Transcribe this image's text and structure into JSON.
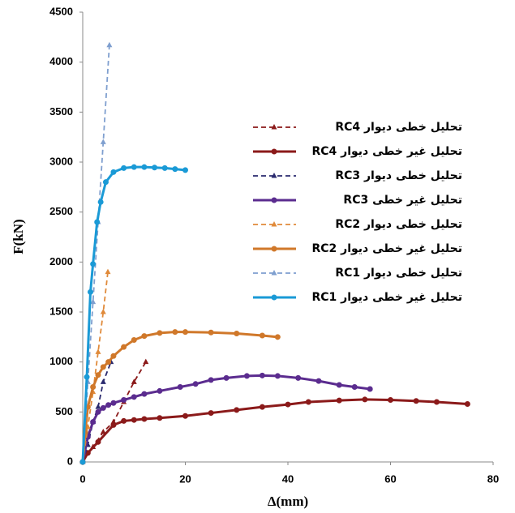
{
  "chart_data": {
    "type": "line",
    "x_label": "Δ(mm)",
    "y_label": "F(kN)",
    "xlim": [
      0,
      80
    ],
    "xticks": [
      0,
      20,
      40,
      60,
      80
    ],
    "ylim": [
      0,
      4500
    ],
    "yticks": [
      0,
      500,
      1000,
      1500,
      2000,
      2500,
      3000,
      3500,
      4000,
      4500
    ],
    "series": [
      {
        "name": "تحلیل خطی دیوار RC4",
        "color": "#8b1a1a",
        "dashed": true,
        "marker": "triangle",
        "x": [
          0,
          2,
          4,
          6,
          8,
          10,
          12.3
        ],
        "values": [
          0,
          150,
          300,
          400,
          600,
          800,
          1000
        ]
      },
      {
        "name": "تحلیل غیر خطی دیوار RC4",
        "color": "#8b1a1a",
        "dashed": false,
        "marker": "circle",
        "x": [
          0,
          1,
          3,
          6,
          8,
          10,
          12,
          15,
          20,
          25,
          30,
          35,
          40,
          44,
          50,
          55,
          60,
          65,
          69,
          75
        ],
        "values": [
          0,
          90,
          200,
          370,
          410,
          420,
          430,
          440,
          460,
          490,
          520,
          550,
          575,
          600,
          615,
          625,
          620,
          610,
          600,
          580
        ]
      },
      {
        "name": "تحلیل خطی دیوار RC3",
        "color": "#2a2a6e",
        "dashed": true,
        "marker": "triangle",
        "x": [
          0,
          1,
          2,
          3,
          4,
          5.5
        ],
        "values": [
          0,
          170,
          400,
          550,
          800,
          1000
        ]
      },
      {
        "name": "تحلیل غیر خطی RC3",
        "color": "#5b2c8f",
        "dashed": false,
        "marker": "circle",
        "x": [
          0,
          1,
          2,
          3,
          4,
          5,
          6,
          8,
          10,
          12,
          15,
          19,
          22,
          25,
          28,
          32,
          35,
          38,
          42,
          46,
          50,
          53,
          56
        ],
        "values": [
          0,
          250,
          400,
          500,
          540,
          570,
          590,
          620,
          650,
          680,
          710,
          750,
          780,
          820,
          840,
          860,
          865,
          860,
          840,
          810,
          770,
          750,
          730
        ]
      },
      {
        "name": "تحلیل خطی دیوار RC2",
        "color": "#e08a3a",
        "dashed": true,
        "marker": "triangle",
        "x": [
          0,
          1,
          2,
          3,
          4,
          4.9
        ],
        "values": [
          0,
          350,
          700,
          1100,
          1500,
          1900
        ]
      },
      {
        "name": "تحلیل غیر خطی دیوار RC2",
        "color": "#d0782a",
        "dashed": false,
        "marker": "circle",
        "x": [
          0,
          0.5,
          1,
          2,
          3,
          4,
          5,
          6,
          8,
          10,
          12,
          15,
          18,
          20,
          25,
          30,
          35,
          38
        ],
        "values": [
          0,
          300,
          550,
          750,
          870,
          950,
          1000,
          1060,
          1150,
          1220,
          1260,
          1290,
          1300,
          1300,
          1295,
          1285,
          1265,
          1250
        ]
      },
      {
        "name": "تحلیل خطی دیوار RC1",
        "color": "#7f9fcf",
        "dashed": true,
        "marker": "triangle",
        "x": [
          0,
          1,
          2,
          3,
          4,
          5.2
        ],
        "values": [
          0,
          800,
          1600,
          2400,
          3200,
          4170
        ]
      },
      {
        "name": "تحلیل غیر خطی دیوار RC1",
        "color": "#1a9ad6",
        "dashed": false,
        "marker": "circle",
        "x": [
          0,
          0.8,
          1.5,
          2,
          2.8,
          3.5,
          4.5,
          6,
          8,
          10,
          12,
          14,
          16,
          18,
          20
        ],
        "values": [
          0,
          850,
          1700,
          1980,
          2400,
          2600,
          2800,
          2900,
          2940,
          2950,
          2950,
          2945,
          2940,
          2930,
          2920
        ]
      }
    ]
  }
}
